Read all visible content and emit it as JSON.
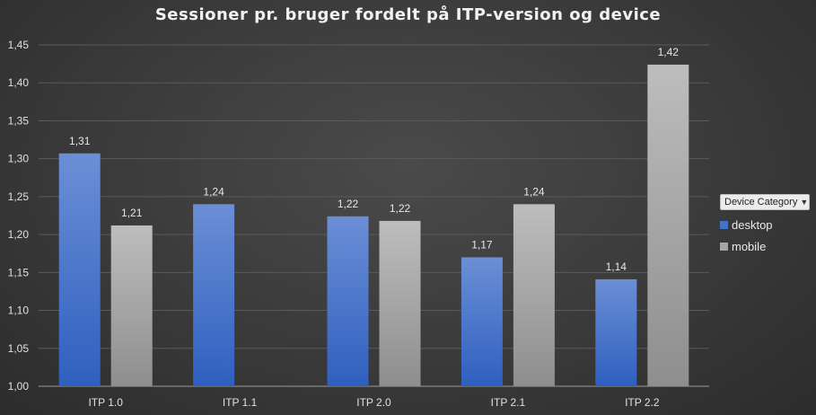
{
  "chart_data": {
    "type": "bar",
    "title": "Sessioner pr. bruger fordelt på ITP-version og device",
    "categories": [
      "ITP 1.0",
      "ITP 1.1",
      "ITP 2.0",
      "ITP 2.1",
      "ITP 2.2"
    ],
    "series": [
      {
        "name": "desktop",
        "color": "#4472c4",
        "values": [
          1.307,
          1.24,
          1.224,
          1.17,
          1.141
        ],
        "labels": [
          "1,31",
          "1,24",
          "1,22",
          "1,17",
          "1,14"
        ]
      },
      {
        "name": "mobile",
        "color": "#a5a5a5",
        "values": [
          1.212,
          null,
          1.218,
          1.24,
          1.424
        ],
        "labels": [
          "1,21",
          "",
          "1,22",
          "1,24",
          "1,42"
        ]
      }
    ],
    "ylim": [
      1.0,
      1.45
    ],
    "yticks": [
      "1,00",
      "1,05",
      "1,10",
      "1,15",
      "1,20",
      "1,25",
      "1,30",
      "1,35",
      "1,40",
      "1,45"
    ],
    "grid": true,
    "legend_position": "right",
    "legend_title": "Device Category"
  }
}
